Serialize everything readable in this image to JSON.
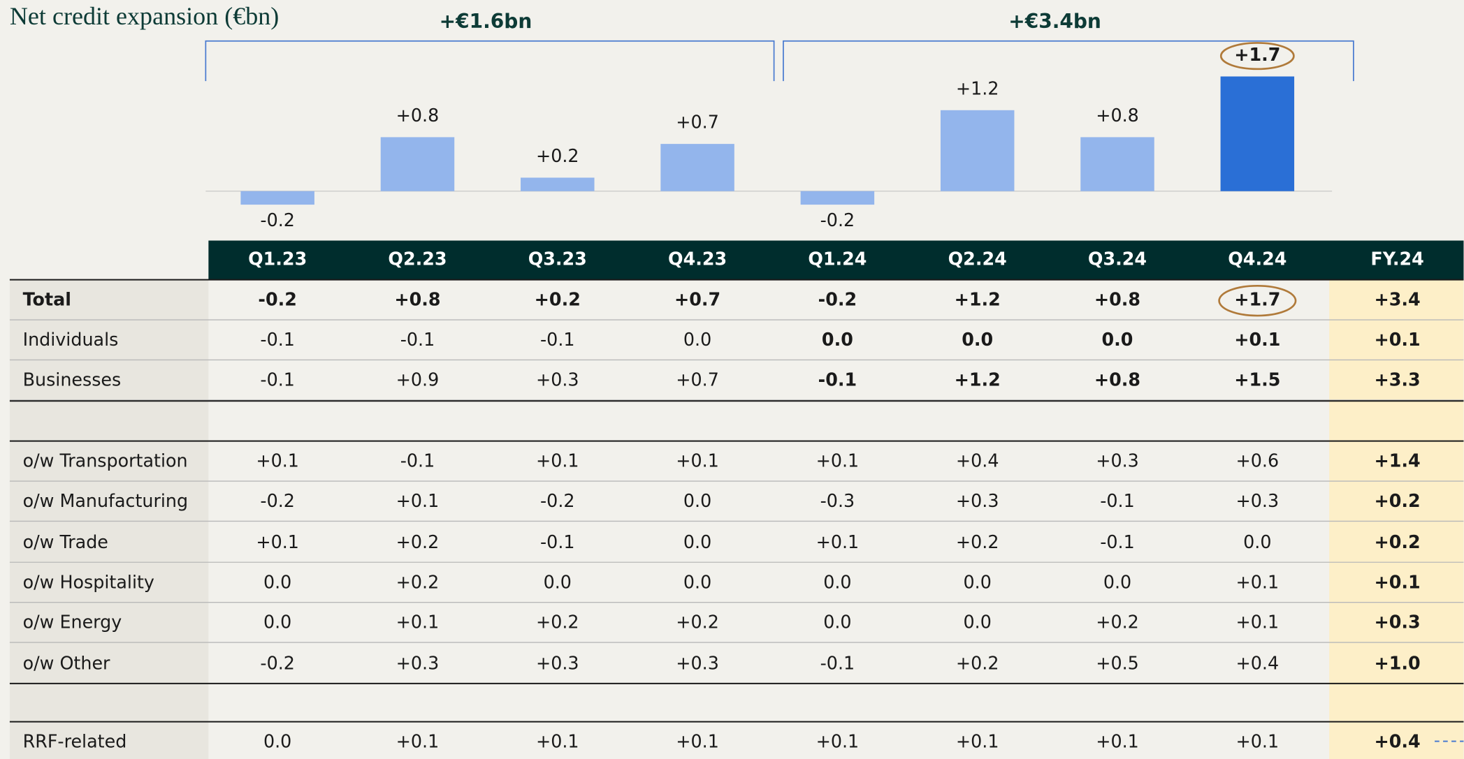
{
  "chart_data": {
    "type": "bar",
    "title": "Net credit expansion (€bn)",
    "categories": [
      "Q1.23",
      "Q2.23",
      "Q3.23",
      "Q4.23",
      "Q1.24",
      "Q2.24",
      "Q3.24",
      "Q4.24"
    ],
    "values": [
      -0.2,
      0.8,
      0.2,
      0.7,
      -0.2,
      1.2,
      0.8,
      1.7
    ],
    "value_labels": [
      "-0.2",
      "+0.8",
      "+0.2",
      "+0.7",
      "-0.2",
      "+1.2",
      "+0.8",
      "+1.7"
    ],
    "colors": [
      "#93b5ec",
      "#93b5ec",
      "#93b5ec",
      "#93b5ec",
      "#93b5ec",
      "#93b5ec",
      "#93b5ec",
      "#2a6fd6"
    ],
    "annotations": [
      "+€1.6bn",
      "+€3.4bn"
    ]
  },
  "table": {
    "columns": [
      "Q1.23",
      "Q2.23",
      "Q3.23",
      "Q4.23",
      "Q1.24",
      "Q2.24",
      "Q3.24",
      "Q4.24",
      "FY.24"
    ],
    "rows": [
      {
        "label": "Total",
        "values": [
          "-0.2",
          "+0.8",
          "+0.2",
          "+0.7",
          "-0.2",
          "+1.2",
          "+0.8",
          "+1.7",
          "+3.4"
        ]
      },
      {
        "label": "Individuals",
        "values": [
          "-0.1",
          "-0.1",
          "-0.1",
          "0.0",
          "0.0",
          "0.0",
          "0.0",
          "+0.1",
          "+0.1"
        ]
      },
      {
        "label": "Businesses",
        "values": [
          "-0.1",
          "+0.9",
          "+0.3",
          "+0.7",
          "-0.1",
          "+1.2",
          "+0.8",
          "+1.5",
          "+3.3"
        ]
      },
      {
        "label": "o/w Transportation",
        "values": [
          "+0.1",
          "-0.1",
          "+0.1",
          "+0.1",
          "+0.1",
          "+0.4",
          "+0.3",
          "+0.6",
          "+1.4"
        ]
      },
      {
        "label": "o/w Manufacturing",
        "values": [
          "-0.2",
          "+0.1",
          "-0.2",
          "0.0",
          "-0.3",
          "+0.3",
          "-0.1",
          "+0.3",
          "+0.2"
        ]
      },
      {
        "label": "o/w Trade",
        "values": [
          "+0.1",
          "+0.2",
          "-0.1",
          "0.0",
          "+0.1",
          "+0.2",
          "-0.1",
          "0.0",
          "+0.2"
        ]
      },
      {
        "label": "o/w Hospitality",
        "values": [
          "0.0",
          "+0.2",
          "0.0",
          "0.0",
          "0.0",
          "0.0",
          "0.0",
          "+0.1",
          "+0.1"
        ]
      },
      {
        "label": "o/w Energy",
        "values": [
          "0.0",
          "+0.1",
          "+0.2",
          "+0.2",
          "0.0",
          "0.0",
          "+0.2",
          "+0.1",
          "+0.3"
        ]
      },
      {
        "label": "o/w Other",
        "values": [
          "-0.2",
          "+0.3",
          "+0.3",
          "+0.3",
          "-0.1",
          "+0.2",
          "+0.5",
          "+0.4",
          "+1.0"
        ]
      },
      {
        "label": "RRF-related",
        "values": [
          "0.0",
          "+0.1",
          "+0.1",
          "+0.1",
          "+0.1",
          "+0.1",
          "+0.1",
          "+0.1",
          "+0.4"
        ]
      }
    ]
  }
}
